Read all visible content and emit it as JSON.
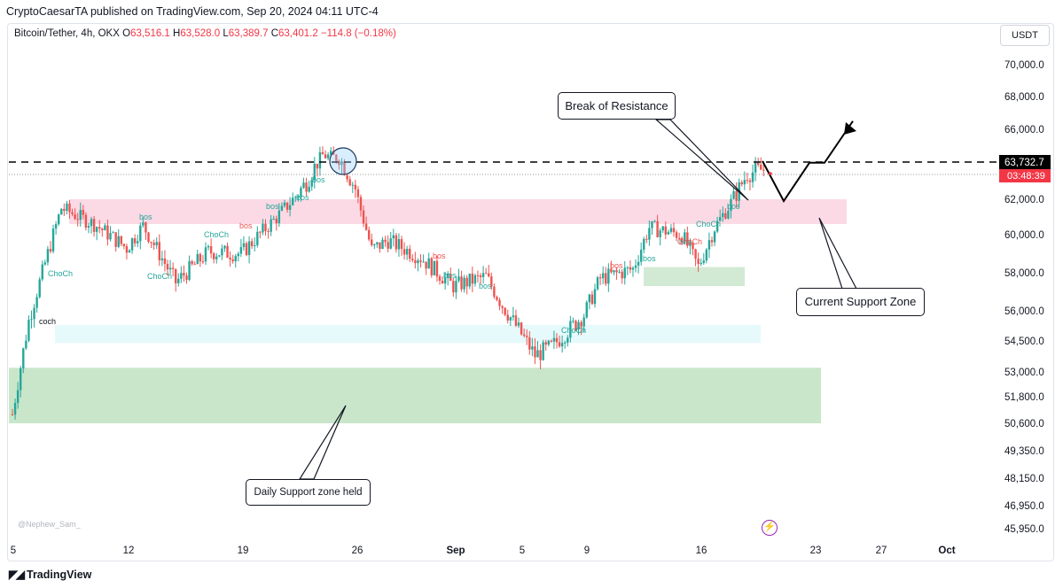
{
  "header": {
    "published_text": "CryptoCaesarTA published on TradingView.com, Sep 20, 2024 04:11 UTC-4"
  },
  "symbol": {
    "name": "Bitcoin/Tether, 4h, OKX",
    "open_label": "O",
    "open": "63,516.1",
    "high_label": "H",
    "high": "63,528.0",
    "low_label": "L",
    "low": "63,389.7",
    "close_label": "C",
    "close": "63,401.2",
    "change": "−114.8 (−0.18%)"
  },
  "currency": "USDT",
  "price_axis": {
    "ticks": [
      "70,000.0",
      "68,000.0",
      "66,000.0",
      "62,000.0",
      "60,000.0",
      "58,000.0",
      "56,000.0",
      "54,500.0",
      "53,000.0",
      "51,800.0",
      "50,600.0",
      "49,350.0",
      "48,150.0",
      "46,950.0",
      "45,950.0"
    ],
    "current_price": "63,732.7",
    "countdown": "03:48:39"
  },
  "time_axis": {
    "ticks": [
      "5",
      "12",
      "19",
      "26",
      "Sep",
      "5",
      "9",
      "16",
      "23",
      "27",
      "Oct"
    ]
  },
  "annotations": {
    "break_of_resistance": "Break of Resistance",
    "current_support_zone": "Current Support Zone",
    "daily_support": "Daily Support zone held"
  },
  "structure_labels": [
    "ChoCh",
    "coch",
    "bos",
    "ChoCh",
    "ChoCh",
    "bos",
    "bos",
    "bos",
    "bos",
    "bos",
    "bos",
    "bos",
    "ChoCh",
    "bos",
    "bos",
    "bos",
    "ChoCh",
    "ChoCh",
    "bos"
  ],
  "watermark": "@Nephew_Sam_",
  "footer": {
    "brand": "TradingView"
  },
  "colors": {
    "up": "#26a69a",
    "down": "#ef5350",
    "pink_zone": "#f8bbd0",
    "green_zone": "#a5d6a7",
    "light_blue_zone": "#e0f7fa",
    "price_tag": "#000000",
    "countdown_tag": "#f23645"
  },
  "chart_data": {
    "type": "candlestick",
    "symbol": "Bitcoin/Tether",
    "interval": "4h",
    "exchange": "OKX",
    "ylim": [
      45500,
      71000
    ],
    "x_ticks": [
      "5",
      "12",
      "19",
      "26",
      "Sep",
      "5",
      "9",
      "16",
      "23",
      "27",
      "Oct"
    ],
    "price_path": [
      [
        "Aug 5",
        51000
      ],
      [
        "Aug 6",
        55500
      ],
      [
        "Aug 8",
        61500
      ],
      [
        "Aug 10",
        60600
      ],
      [
        "Aug 12",
        59300
      ],
      [
        "Aug 13",
        60500
      ],
      [
        "Aug 15",
        57500
      ],
      [
        "Aug 17",
        59100
      ],
      [
        "Aug 19",
        59000
      ],
      [
        "Aug 21",
        60800
      ],
      [
        "Aug 23",
        62800
      ],
      [
        "Aug 24",
        64200
      ],
      [
        "Aug 25",
        64000
      ],
      [
        "Aug 26",
        62500
      ],
      [
        "Aug 27",
        59200
      ],
      [
        "Aug 28",
        59700
      ],
      [
        "Aug 30",
        58800
      ],
      [
        "Sep 1",
        57300
      ],
      [
        "Sep 3",
        57800
      ],
      [
        "Sep 4",
        56300
      ],
      [
        "Sep 6",
        53800
      ],
      [
        "Sep 7",
        54200
      ],
      [
        "Sep 9",
        55800
      ],
      [
        "Sep 10",
        57700
      ],
      [
        "Sep 12",
        58200
      ],
      [
        "Sep 13",
        60400
      ],
      [
        "Sep 15",
        60000
      ],
      [
        "Sep 16",
        58300
      ],
      [
        "Sep 17",
        60400
      ],
      [
        "Sep 18",
        61800
      ],
      [
        "Sep 19",
        63200
      ],
      [
        "Sep 20",
        63401.2
      ]
    ],
    "horizontal_levels": [
      {
        "name": "resistance",
        "value": 63732.7,
        "style": "dashed"
      }
    ],
    "zones": [
      {
        "label": "Current Support Zone",
        "from": 60600,
        "to": 62000,
        "color": "pink"
      },
      {
        "label": "Daily Support zone held",
        "from": 50600,
        "to": 53200,
        "color": "green"
      },
      {
        "from": 54400,
        "to": 55300,
        "color": "light-blue"
      },
      {
        "from": 57300,
        "to": 58300,
        "color": "green"
      }
    ],
    "projection": [
      [
        "Sep 20",
        63800
      ],
      [
        "Sep 21",
        61900
      ],
      [
        "Sep 22",
        63700
      ],
      [
        "Sep 23",
        63700
      ],
      [
        "Sep 25",
        66500
      ]
    ]
  }
}
